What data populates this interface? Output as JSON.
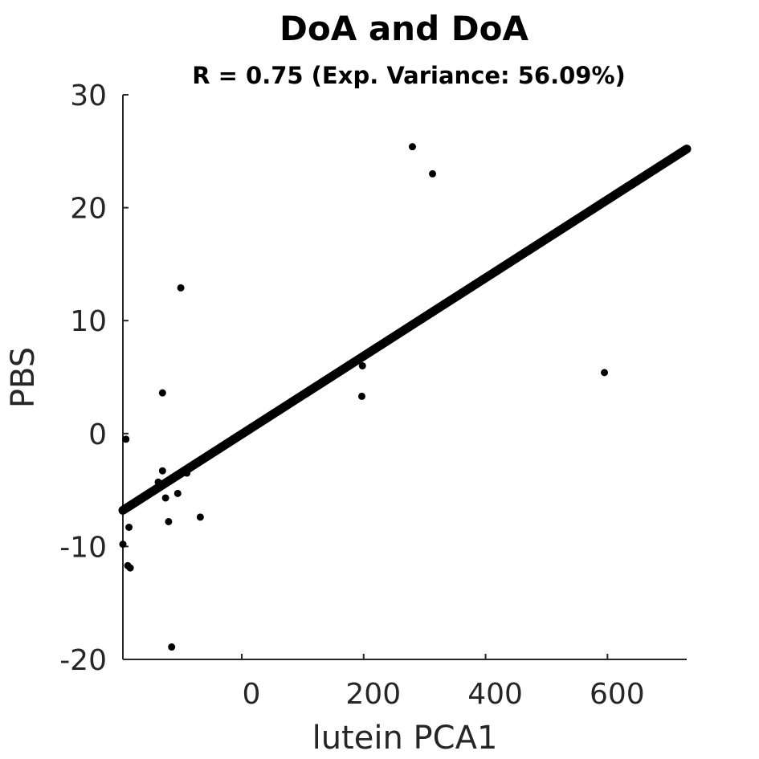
{
  "chart_data": {
    "type": "scatter",
    "title": "DoA and DoA",
    "subtitle": "R = 0.75 (Exp. Variance: 56.09%)",
    "xlabel": "lutein PCA1",
    "ylabel": "PBS",
    "xlim": [
      -195,
      730
    ],
    "ylim": [
      -20,
      30
    ],
    "xticks": [
      0,
      200,
      400,
      600
    ],
    "xtick_labels": [
      "0",
      "200",
      "400",
      "600"
    ],
    "yticks": [
      -20,
      -10,
      0,
      10,
      20,
      30
    ],
    "ytick_labels": [
      "-20",
      "-10",
      "0",
      "10",
      "20",
      "30"
    ],
    "grid": false,
    "point_color": "#000000",
    "line_color": "#000000",
    "points": [
      {
        "x": -190,
        "y": -0.5
      },
      {
        "x": -195,
        "y": -9.8
      },
      {
        "x": -185,
        "y": -8.3
      },
      {
        "x": -187,
        "y": -11.7
      },
      {
        "x": -183,
        "y": -11.9
      },
      {
        "x": -130,
        "y": 3.6
      },
      {
        "x": -130,
        "y": -3.3
      },
      {
        "x": -137,
        "y": -4.3
      },
      {
        "x": -125,
        "y": -5.7
      },
      {
        "x": -100,
        "y": 12.9
      },
      {
        "x": -105,
        "y": -5.3
      },
      {
        "x": -120,
        "y": -7.8
      },
      {
        "x": -90,
        "y": -3.5
      },
      {
        "x": -68,
        "y": -7.4
      },
      {
        "x": -115,
        "y": -18.9
      },
      {
        "x": 198,
        "y": 6.0
      },
      {
        "x": 197,
        "y": 3.3
      },
      {
        "x": 280,
        "y": 25.4
      },
      {
        "x": 313,
        "y": 23.0
      },
      {
        "x": 595,
        "y": 5.4
      }
    ],
    "fit_line": {
      "x": [
        -195,
        730
      ],
      "y": [
        -6.8,
        25.2
      ]
    }
  }
}
